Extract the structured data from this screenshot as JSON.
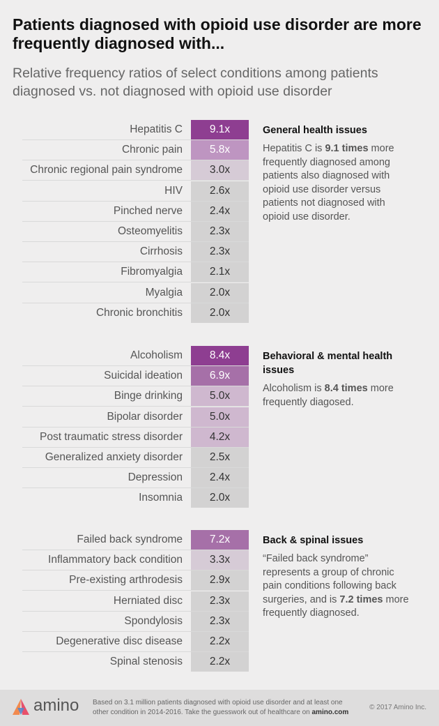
{
  "title": "Patients diagnosed with opioid use disorder are more frequently diagnosed with...",
  "subtitle": "Relative frequency ratios of select conditions among patients diagnosed vs. not diagnosed with opioid use disorder",
  "colors": {
    "scale": [
      "#d3d2d2",
      "#d6cbd6",
      "#cfb8cf",
      "#be95c1",
      "#a670a8",
      "#8e3e91"
    ]
  },
  "chart_data": [
    {
      "type": "table",
      "title": "General health issues",
      "value_suffix": "x",
      "categories": [
        "Hepatitis C",
        "Chronic pain",
        "Chronic regional pain syndrome",
        "HIV",
        "Pinched nerve",
        "Osteomyelitis",
        "Cirrhosis",
        "Fibromyalgia",
        "Myalgia",
        "Chronic bronchitis"
      ],
      "values": [
        9.1,
        5.8,
        3.0,
        2.6,
        2.4,
        2.3,
        2.3,
        2.1,
        2.0,
        2.0
      ],
      "value_labels": [
        "9.1x",
        "5.8x",
        "3.0x",
        "2.6x",
        "2.4x",
        "2.3x",
        "2.3x",
        "2.1x",
        "2.0x",
        "2.0x"
      ],
      "note_pre": "Hepatitis C is ",
      "note_bold": "9.1 times",
      "note_post": " more frequently diagnosed among patients also diagnosed with opioid use disorder versus patients not diagnosed with opioid use disorder."
    },
    {
      "type": "table",
      "title": "Behavioral & mental health issues",
      "value_suffix": "x",
      "categories": [
        "Alcoholism",
        "Suicidal ideation",
        "Binge drinking",
        "Bipolar disorder",
        "Post traumatic stress disorder",
        "Generalized anxiety disorder",
        "Depression",
        "Insomnia"
      ],
      "values": [
        8.4,
        6.9,
        5.0,
        5.0,
        4.2,
        2.5,
        2.4,
        2.0
      ],
      "value_labels": [
        "8.4x",
        "6.9x",
        "5.0x",
        "5.0x",
        "4.2x",
        "2.5x",
        "2.4x",
        "2.0x"
      ],
      "note_pre": "Alcoholism is ",
      "note_bold": "8.4 times",
      "note_post": " more frequently diagosed."
    },
    {
      "type": "table",
      "title": "Back & spinal issues",
      "value_suffix": "x",
      "categories": [
        "Failed back syndrome",
        "Inflammatory back condition",
        "Pre-existing arthrodesis",
        "Herniated disc",
        "Spondylosis",
        "Degenerative disc disease",
        "Spinal stenosis"
      ],
      "values": [
        7.2,
        3.3,
        2.9,
        2.3,
        2.3,
        2.2,
        2.2
      ],
      "value_labels": [
        "7.2x",
        "3.3x",
        "2.9x",
        "2.3x",
        "2.3x",
        "2.2x",
        "2.2x"
      ],
      "note_pre": "“Failed back syndrome” represents a group of chronic pain conditions following back surgeries, and is ",
      "note_bold": "7.2 times",
      "note_post": " more frequently diagnosed."
    }
  ],
  "footer": {
    "brand": "amino",
    "logo_icon": "amino-logo-icon",
    "text_pre": "Based on 3.1 million patients diagnosed with opioid use disorder and at least one other condition in 2014-2016. Take the guesswork out of healthcare on ",
    "text_bold": "amino.com",
    "copyright": "© 2017 Amino Inc."
  }
}
